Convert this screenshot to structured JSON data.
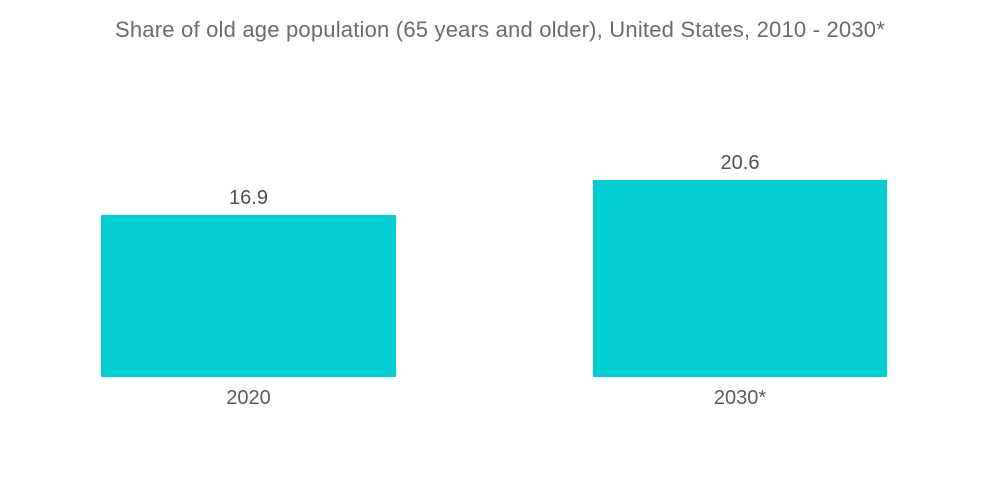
{
  "title": "Share of old age population (65 years and older), United States, 2010 - 2030*",
  "colors": {
    "bar": "#00CCD2",
    "title_text": "#6a6b6d",
    "label_text": "#4e4f51"
  },
  "chart_data": {
    "type": "bar",
    "title": "Share of old age population (65 years and older), United States, 2010 - 2030*",
    "categories": [
      "2020",
      "2030*"
    ],
    "values": [
      16.9,
      20.6
    ],
    "value_labels": [
      "16.9",
      "20.6"
    ],
    "xlabel": "",
    "ylabel": "",
    "ylim": [
      0,
      22
    ],
    "grid": false,
    "legend": false,
    "bar_color": "#00CCD2",
    "orientation": "vertical"
  }
}
